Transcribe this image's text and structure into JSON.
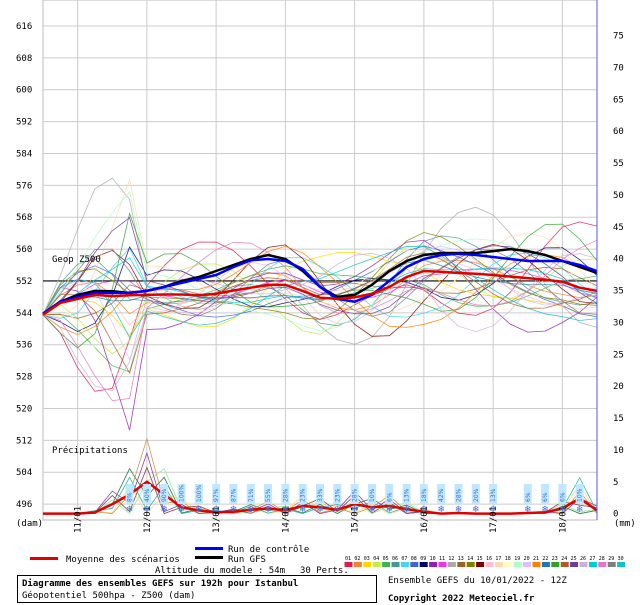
{
  "chart_data": {
    "type": "line",
    "title": "Diagramme des ensembles GEFS sur 192h pour Istanbul",
    "subtitle": "Géopotentiel 500hpa - Z500 (dam)",
    "altitude_label": "Altitude du modele : 54m",
    "left_unit": "(dam)",
    "right_unit": "(mm)",
    "left_axis": {
      "min": 492,
      "max": 620,
      "ticks": [
        496,
        504,
        512,
        520,
        528,
        536,
        544,
        552,
        560,
        568,
        576,
        584,
        592,
        600,
        608,
        616
      ]
    },
    "right_axis": {
      "min": -1,
      "max": 79,
      "ticks": [
        0,
        5,
        10,
        15,
        20,
        25,
        30,
        35,
        40,
        45,
        50,
        55,
        60,
        65,
        70,
        75
      ]
    },
    "x_labels": [
      "11/01",
      "12/01",
      "13/01",
      "14/01",
      "15/01",
      "16/01",
      "17/01",
      "18/01"
    ],
    "x_hours": [
      0,
      6,
      12,
      18,
      24,
      30,
      36,
      42,
      48,
      54,
      60,
      66,
      72,
      78,
      84,
      90,
      96,
      102,
      108,
      114,
      120,
      126,
      132,
      138,
      144,
      150,
      156,
      162,
      168,
      174,
      180,
      186,
      192
    ],
    "geop_ref": {
      "label": "Geop Z500",
      "value": 552
    },
    "precip_label": "Précipitations",
    "series": [
      {
        "name": "Moyenne des scénarios",
        "color": "#e00000",
        "values": [
          543.5,
          546.5,
          547.5,
          548.5,
          548.2,
          548.4,
          548.5,
          548.6,
          548.6,
          548.4,
          548.8,
          549.6,
          550.3,
          551,
          551,
          549.5,
          547.8,
          547.5,
          547.9,
          548.8,
          550.5,
          553,
          554.5,
          554.3,
          554,
          553.8,
          553.5,
          553.1,
          552.7,
          552.3,
          551.8,
          550.3,
          549.5
        ]
      },
      {
        "name": "Run de contrôle",
        "color": "#0000ff",
        "values": [
          543.8,
          546.8,
          548,
          549,
          549,
          549,
          549.5,
          550.5,
          551.5,
          552.5,
          553.5,
          555.5,
          557.2,
          557.5,
          557,
          555,
          550.5,
          547.5,
          546.8,
          548.5,
          552,
          555.5,
          557.5,
          558.5,
          558.8,
          558.5,
          558,
          557.5,
          557,
          557,
          557,
          556,
          554.5
        ]
      },
      {
        "name": "Run GFS",
        "color": "#000000",
        "values": [
          543.8,
          546.8,
          548.5,
          549.5,
          549.4,
          549,
          549.5,
          550.5,
          552,
          553,
          554.5,
          556,
          557.5,
          558.5,
          557.5,
          554.5,
          550.5,
          548,
          548.5,
          551,
          554.5,
          557,
          558.5,
          559,
          559,
          559,
          559.5,
          560,
          559.5,
          558.5,
          557,
          555.5,
          554
        ]
      }
    ],
    "precip_mean_mm": [
      0,
      0,
      0,
      0.2,
      1.5,
      3,
      5,
      3,
      1,
      0.5,
      0.2,
      0.3,
      0.6,
      0.8,
      0.5,
      1.2,
      1,
      0.6,
      1.5,
      1,
      1.2,
      0.7,
      0.3,
      0,
      0.1,
      0,
      0,
      0,
      0.1,
      0.2,
      0.8,
      2.4,
      0.5
    ],
    "snow_probs": [
      {
        "label": "8%",
        "hour": 30
      },
      {
        "label": "40%",
        "hour": 36
      },
      {
        "label": "90%",
        "hour": 42
      },
      {
        "label": "100%",
        "hour": 48
      },
      {
        "label": "100%",
        "hour": 54
      },
      {
        "label": "97%",
        "hour": 60
      },
      {
        "label": "87%",
        "hour": 66
      },
      {
        "label": "71%",
        "hour": 72
      },
      {
        "label": "55%",
        "hour": 78
      },
      {
        "label": "28%",
        "hour": 84
      },
      {
        "label": "23%",
        "hour": 90
      },
      {
        "label": "33%",
        "hour": 96
      },
      {
        "label": "23%",
        "hour": 102
      },
      {
        "label": "28%",
        "hour": 108
      },
      {
        "label": "10%",
        "hour": 114
      },
      {
        "label": "6%",
        "hour": 120
      },
      {
        "label": "13%",
        "hour": 126
      },
      {
        "label": "18%",
        "hour": 132
      },
      {
        "label": "42%",
        "hour": 138
      },
      {
        "label": "28%",
        "hour": 144
      },
      {
        "label": "20%",
        "hour": 150
      },
      {
        "label": "13%",
        "hour": 156
      },
      {
        "label": "6%",
        "hour": 168
      },
      {
        "label": "6%",
        "hour": 174
      },
      {
        "label": "6%",
        "hour": 180
      },
      {
        "label": "10%",
        "hour": 186
      }
    ],
    "perts_label": "30 Perts.",
    "perts_numbers": [
      "01",
      "02",
      "03",
      "04",
      "05",
      "06",
      "07",
      "08",
      "09",
      "10",
      "11",
      "12",
      "13",
      "14",
      "15",
      "16",
      "17",
      "18",
      "19",
      "20",
      "21",
      "22",
      "23",
      "24",
      "25",
      "26",
      "27",
      "28",
      "29",
      "30"
    ],
    "perts_colors": [
      "#e6194b",
      "#f58231",
      "#ffd600",
      "#bfef45",
      "#3cb44b",
      "#469990",
      "#42d4f4",
      "#4363d8",
      "#000075",
      "#911eb4",
      "#f032e6",
      "#a9a9a9",
      "#9a6324",
      "#808000",
      "#800000",
      "#fabed4",
      "#ffd8b1",
      "#fffac8",
      "#aaffc3",
      "#dcbeff",
      "#ff7f00",
      "#1f78b4",
      "#33a02c",
      "#b15928",
      "#6a3d9a",
      "#cab2d6",
      "#00ced1",
      "#e377c2",
      "#7f7f7f",
      "#17becf"
    ]
  },
  "legend": {
    "mean": "Moyenne des scénarios",
    "control": "Run de contrôle",
    "gfs": "Run GFS"
  },
  "footer": {
    "ensemble_info": "Ensemble GEFS du 10/01/2022 - 12Z",
    "copyright": "Copyright 2022 Meteociel.fr"
  }
}
